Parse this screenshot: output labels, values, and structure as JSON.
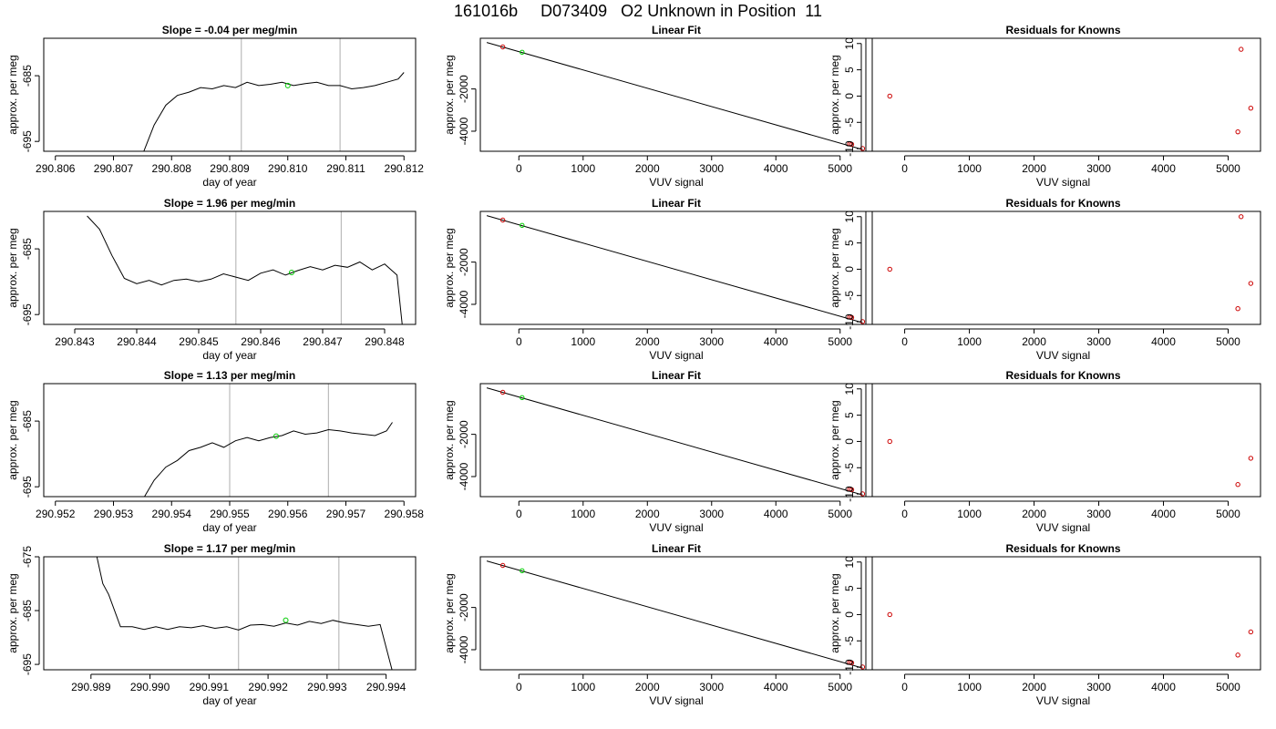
{
  "figure": {
    "title": "161016b     D073409   O2 Unknown in Position  11"
  },
  "colors": {
    "trace": "#000000",
    "known_point": "#cc0000",
    "unknown_point": "#00cc00",
    "vline": "#bbbbbb",
    "axis": "#000000"
  },
  "chart_data": [
    {
      "row": 1,
      "type": "line",
      "title": "Slope =  -0.04  per meg/min",
      "xlabel": "day of year",
      "ylabel": "approx. per meg",
      "xlim": [
        290.8058,
        290.8122
      ],
      "ylim": [
        -696.5,
        -679.3
      ],
      "xticks": [
        290.806,
        290.807,
        290.808,
        290.809,
        290.81,
        290.811,
        290.812
      ],
      "xtick_labels": [
        "290.806",
        "290.807",
        "290.808",
        "290.809",
        "290.810",
        "290.811",
        "290.812"
      ],
      "yticks": [
        -695,
        -685
      ],
      "ytick_labels": [
        "-695",
        "-685"
      ],
      "vlines": [
        290.8092,
        290.8109
      ],
      "x": [
        290.8075,
        290.8077,
        290.8079,
        290.8081,
        290.8083,
        290.8085,
        290.8087,
        290.8089,
        290.8091,
        290.8093,
        290.8095,
        290.8097,
        290.8099,
        290.8101,
        290.8103,
        290.8105,
        290.8107,
        290.8109,
        290.8111,
        290.8113,
        290.8115,
        290.8117,
        290.8119,
        290.812
      ],
      "y": [
        -697,
        -692.5,
        -689.5,
        -688.0,
        -687.5,
        -686.8,
        -687.0,
        -686.5,
        -686.8,
        -686.0,
        -686.5,
        -686.3,
        -686.0,
        -686.5,
        -686.2,
        -686.0,
        -686.5,
        -686.5,
        -687.0,
        -686.8,
        -686.5,
        -686.0,
        -685.5,
        -684.5
      ],
      "marker": {
        "x": 290.81,
        "y": -686.5
      }
    },
    {
      "row": 1,
      "type": "scatter",
      "title": "Linear Fit",
      "xlabel": "VUV signal",
      "ylabel": "approx. per meg",
      "xlim": [
        -600,
        5500
      ],
      "ylim": [
        -4950,
        400
      ],
      "xticks": [
        0,
        1000,
        2000,
        3000,
        4000,
        5000
      ],
      "xtick_labels": [
        "0",
        "1000",
        "2000",
        "3000",
        "4000",
        "5000"
      ],
      "yticks": [
        -4000,
        -2000
      ],
      "ytick_labels": [
        "-4000",
        "-2000"
      ],
      "fit_line": {
        "x": [
          -500,
          5350
        ],
        "y": [
          200,
          -4870
        ]
      },
      "known": [
        {
          "x": -250,
          "y": -10
        },
        {
          "x": 5150,
          "y": -4600
        },
        {
          "x": 5180,
          "y": -4620
        },
        {
          "x": 5350,
          "y": -4820
        }
      ],
      "unknown": [
        {
          "x": 50,
          "y": -260
        }
      ]
    },
    {
      "row": 1,
      "type": "scatter",
      "title": "Residuals for Knowns",
      "xlabel": "VUV signal",
      "ylabel": "approx. per meg",
      "xlim": [
        -600,
        5500
      ],
      "ylim": [
        -10.5,
        11
      ],
      "xticks": [
        0,
        1000,
        2000,
        3000,
        4000,
        5000
      ],
      "xtick_labels": [
        "0",
        "1000",
        "2000",
        "3000",
        "4000",
        "5000"
      ],
      "yticks": [
        -10,
        -5,
        0,
        5,
        10
      ],
      "ytick_labels": [
        "-10",
        "-5",
        "0",
        "5",
        "10"
      ],
      "known": [
        {
          "x": -230,
          "y": 0.0
        },
        {
          "x": 5200,
          "y": 8.9
        },
        {
          "x": 5350,
          "y": -2.3
        },
        {
          "x": 5150,
          "y": -6.8
        }
      ]
    },
    {
      "row": 2,
      "type": "line",
      "title": "Slope =  1.96  per meg/min",
      "xlabel": "day of year",
      "ylabel": "approx. per meg",
      "xlim": [
        290.8425,
        290.8485
      ],
      "ylim": [
        -696.5,
        -679.3
      ],
      "xticks": [
        290.843,
        290.844,
        290.845,
        290.846,
        290.847,
        290.848
      ],
      "xtick_labels": [
        "290.843",
        "290.844",
        "290.845",
        "290.846",
        "290.847",
        "290.848"
      ],
      "yticks": [
        -695,
        -685
      ],
      "ytick_labels": [
        "-695",
        "-685"
      ],
      "vlines": [
        290.8456,
        290.8473
      ],
      "x": [
        290.8432,
        290.8434,
        290.8436,
        290.8438,
        290.844,
        290.8442,
        290.8444,
        290.8446,
        290.8448,
        290.845,
        290.8452,
        290.8454,
        290.8456,
        290.8458,
        290.846,
        290.8462,
        290.8464,
        290.8466,
        290.8468,
        290.847,
        290.8472,
        290.8474,
        290.8476,
        290.8478,
        290.848,
        290.8482,
        290.8483
      ],
      "y": [
        -680,
        -682,
        -686,
        -689.5,
        -690.3,
        -689.8,
        -690.5,
        -689.8,
        -689.6,
        -690.0,
        -689.6,
        -688.8,
        -689.3,
        -689.8,
        -688.7,
        -688.2,
        -689.0,
        -688.3,
        -687.7,
        -688.2,
        -687.5,
        -687.8,
        -687.0,
        -688.2,
        -687.3,
        -689.0,
        -698
      ],
      "marker": {
        "x": 290.8465,
        "y": -688.6
      }
    },
    {
      "row": 2,
      "type": "scatter",
      "title": "Linear Fit",
      "xlabel": "VUV signal",
      "ylabel": "approx. per meg",
      "xlim": [
        -600,
        5500
      ],
      "ylim": [
        -4950,
        400
      ],
      "xticks": [
        0,
        1000,
        2000,
        3000,
        4000,
        5000
      ],
      "xtick_labels": [
        "0",
        "1000",
        "2000",
        "3000",
        "4000",
        "5000"
      ],
      "yticks": [
        -4000,
        -2000
      ],
      "ytick_labels": [
        "-4000",
        "-2000"
      ],
      "fit_line": {
        "x": [
          -500,
          5350
        ],
        "y": [
          200,
          -4870
        ]
      },
      "known": [
        {
          "x": -250,
          "y": -10
        },
        {
          "x": 5150,
          "y": -4600
        },
        {
          "x": 5180,
          "y": -4620
        },
        {
          "x": 5350,
          "y": -4820
        }
      ],
      "unknown": [
        {
          "x": 50,
          "y": -260
        }
      ]
    },
    {
      "row": 2,
      "type": "scatter",
      "title": "Residuals for Knowns",
      "xlabel": "VUV signal",
      "ylabel": "approx. per meg",
      "xlim": [
        -600,
        5500
      ],
      "ylim": [
        -10.5,
        11
      ],
      "xticks": [
        0,
        1000,
        2000,
        3000,
        4000,
        5000
      ],
      "xtick_labels": [
        "0",
        "1000",
        "2000",
        "3000",
        "4000",
        "5000"
      ],
      "yticks": [
        -10,
        -5,
        0,
        5,
        10
      ],
      "ytick_labels": [
        "-10",
        "-5",
        "0",
        "5",
        "10"
      ],
      "known": [
        {
          "x": -230,
          "y": 0.0
        },
        {
          "x": 5200,
          "y": 10.0
        },
        {
          "x": 5350,
          "y": -2.7
        },
        {
          "x": 5150,
          "y": -7.5
        }
      ]
    },
    {
      "row": 3,
      "type": "line",
      "title": "Slope =  1.13  per meg/min",
      "xlabel": "day of year",
      "ylabel": "approx. per meg",
      "xlim": [
        290.9518,
        290.9582
      ],
      "ylim": [
        -696.5,
        -679.3
      ],
      "xticks": [
        290.952,
        290.953,
        290.954,
        290.955,
        290.956,
        290.957,
        290.958
      ],
      "xtick_labels": [
        "290.952",
        "290.953",
        "290.954",
        "290.955",
        "290.956",
        "290.957",
        "290.958"
      ],
      "yticks": [
        -695,
        -685
      ],
      "ytick_labels": [
        "-695",
        "-685"
      ],
      "vlines": [
        290.955,
        290.9567
      ],
      "x": [
        290.9535,
        290.9537,
        290.9539,
        290.9541,
        290.9543,
        290.9545,
        290.9547,
        290.9549,
        290.9551,
        290.9553,
        290.9555,
        290.9557,
        290.9559,
        290.9561,
        290.9563,
        290.9565,
        290.9567,
        290.9569,
        290.9571,
        290.9573,
        290.9575,
        290.9577,
        290.9578
      ],
      "y": [
        -697,
        -694,
        -692,
        -691,
        -689.5,
        -689,
        -688.3,
        -689,
        -688.0,
        -687.5,
        -688.0,
        -687.5,
        -687.2,
        -686.5,
        -687.0,
        -686.8,
        -686.3,
        -686.5,
        -686.8,
        -687.0,
        -687.2,
        -686.5,
        -685.2
      ],
      "marker": {
        "x": 290.9558,
        "y": -687.3
      }
    },
    {
      "row": 3,
      "type": "scatter",
      "title": "Linear Fit",
      "xlabel": "VUV signal",
      "ylabel": "approx. per meg",
      "xlim": [
        -600,
        5500
      ],
      "ylim": [
        -4950,
        400
      ],
      "xticks": [
        0,
        1000,
        2000,
        3000,
        4000,
        5000
      ],
      "xtick_labels": [
        "0",
        "1000",
        "2000",
        "3000",
        "4000",
        "5000"
      ],
      "yticks": [
        -4000,
        -2000
      ],
      "ytick_labels": [
        "-4000",
        "-2000"
      ],
      "fit_line": {
        "x": [
          -500,
          5350
        ],
        "y": [
          200,
          -4870
        ]
      },
      "known": [
        {
          "x": -250,
          "y": -10
        },
        {
          "x": 5150,
          "y": -4600
        },
        {
          "x": 5180,
          "y": -4620
        },
        {
          "x": 5350,
          "y": -4820
        }
      ],
      "unknown": [
        {
          "x": 50,
          "y": -260
        }
      ]
    },
    {
      "row": 3,
      "type": "scatter",
      "title": "Residuals for Knowns",
      "xlabel": "VUV signal",
      "ylabel": "approx. per meg",
      "xlim": [
        -600,
        5500
      ],
      "ylim": [
        -10.5,
        11
      ],
      "xticks": [
        0,
        1000,
        2000,
        3000,
        4000,
        5000
      ],
      "xtick_labels": [
        "0",
        "1000",
        "2000",
        "3000",
        "4000",
        "5000"
      ],
      "yticks": [
        -10,
        -5,
        0,
        5,
        10
      ],
      "ytick_labels": [
        "-10",
        "-5",
        "0",
        "5",
        "10"
      ],
      "known": [
        {
          "x": -230,
          "y": 0.0
        },
        {
          "x": 5350,
          "y": -3.2
        },
        {
          "x": 5150,
          "y": -8.2
        }
      ]
    },
    {
      "row": 4,
      "type": "line",
      "title": "Slope =  1.17  per meg/min",
      "xlabel": "day of year",
      "ylabel": "approx. per meg",
      "xlim": [
        290.9882,
        290.9945
      ],
      "ylim": [
        -696.0,
        -675.0
      ],
      "xticks": [
        290.989,
        290.99,
        290.991,
        290.992,
        290.993,
        290.994
      ],
      "xtick_labels": [
        "290.989",
        "290.990",
        "290.991",
        "290.992",
        "290.993",
        "290.994"
      ],
      "yticks": [
        -695,
        -685,
        -675
      ],
      "ytick_labels": [
        "-695",
        "-685",
        "-675"
      ],
      "vlines": [
        290.9915,
        290.9932
      ],
      "x": [
        290.9891,
        290.9892,
        290.9893,
        290.9895,
        290.9897,
        290.9899,
        290.9901,
        290.9903,
        290.9905,
        290.9907,
        290.9909,
        290.9911,
        290.9913,
        290.9915,
        290.9917,
        290.9919,
        290.9921,
        290.9923,
        290.9925,
        290.9927,
        290.9929,
        290.9931,
        290.9933,
        290.9935,
        290.9937,
        290.9939,
        290.9941
      ],
      "y": [
        -675,
        -680,
        -682,
        -688,
        -688,
        -688.5,
        -688.0,
        -688.5,
        -688.0,
        -688.2,
        -687.8,
        -688.3,
        -688.0,
        -688.6,
        -687.7,
        -687.6,
        -687.9,
        -687.3,
        -687.7,
        -687.0,
        -687.4,
        -686.8,
        -687.3,
        -687.6,
        -687.9,
        -687.6,
        -696
      ],
      "marker": {
        "x": 290.9923,
        "y": -686.8
      }
    },
    {
      "row": 4,
      "type": "scatter",
      "title": "Linear Fit",
      "xlabel": "VUV signal",
      "ylabel": "approx. per meg",
      "xlim": [
        -600,
        5500
      ],
      "ylim": [
        -4950,
        400
      ],
      "xticks": [
        0,
        1000,
        2000,
        3000,
        4000,
        5000
      ],
      "xtick_labels": [
        "0",
        "1000",
        "2000",
        "3000",
        "4000",
        "5000"
      ],
      "yticks": [
        -4000,
        -2000
      ],
      "ytick_labels": [
        "-4000",
        "-2000"
      ],
      "fit_line": {
        "x": [
          -500,
          5350
        ],
        "y": [
          200,
          -4870
        ]
      },
      "known": [
        {
          "x": -250,
          "y": -10
        },
        {
          "x": 5150,
          "y": -4600
        },
        {
          "x": 5180,
          "y": -4620
        },
        {
          "x": 5350,
          "y": -4820
        }
      ],
      "unknown": [
        {
          "x": 50,
          "y": -260
        }
      ]
    },
    {
      "row": 4,
      "type": "scatter",
      "title": "Residuals for Knowns",
      "xlabel": "VUV signal",
      "ylabel": "approx. per meg",
      "xlim": [
        -600,
        5500
      ],
      "ylim": [
        -10.5,
        11
      ],
      "xticks": [
        0,
        1000,
        2000,
        3000,
        4000,
        5000
      ],
      "xtick_labels": [
        "0",
        "1000",
        "2000",
        "3000",
        "4000",
        "5000"
      ],
      "yticks": [
        -10,
        -5,
        0,
        5,
        10
      ],
      "ytick_labels": [
        "-10",
        "-5",
        "0",
        "5",
        "10"
      ],
      "known": [
        {
          "x": -230,
          "y": 0.0
        },
        {
          "x": 5350,
          "y": -3.3
        },
        {
          "x": 5150,
          "y": -7.7
        }
      ]
    }
  ]
}
